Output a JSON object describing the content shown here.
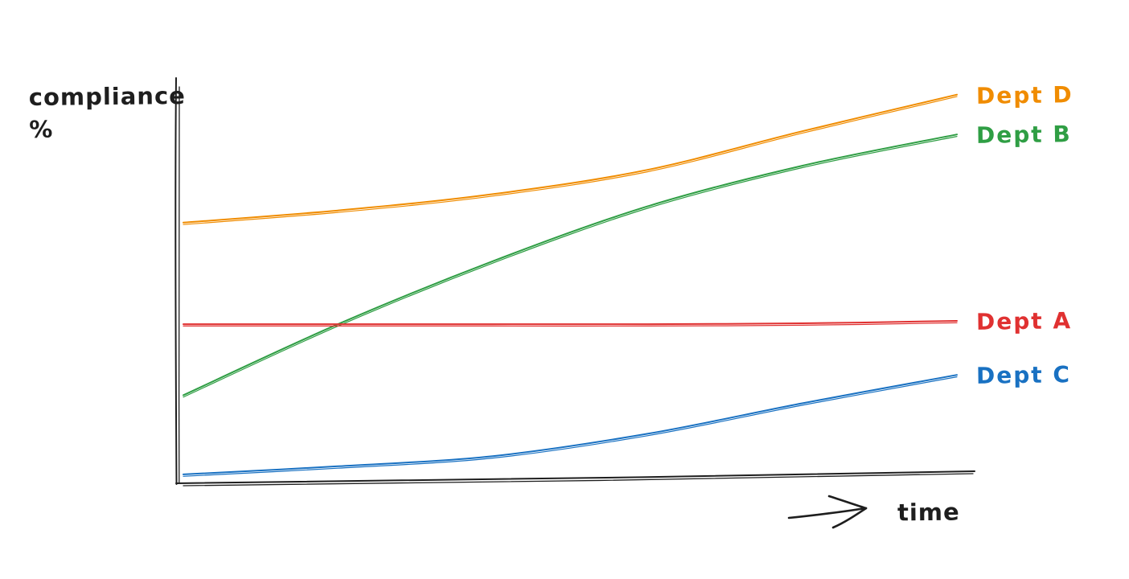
{
  "ui": {
    "ylabel_lines": [
      "compliance",
      "%"
    ],
    "xlabel": "time"
  },
  "style": {
    "axis_color": "#1e1e1e",
    "background": "#ffffff"
  },
  "chart_data": {
    "type": "line",
    "title": "",
    "xlabel": "time",
    "ylabel": "compliance %",
    "x": [
      0,
      0.2,
      0.4,
      0.6,
      0.8,
      1.0
    ],
    "x_tick_labels": [],
    "y_tick_labels": [],
    "ylim": [
      0,
      100
    ],
    "grid": false,
    "legend_position": "right of line endpoints",
    "style_note": "hand-drawn sketch, double-stroked lines, unlabeled axes",
    "series": [
      {
        "name": "Dept D",
        "color": "#f08c00",
        "values": [
          64,
          67,
          71,
          77,
          86.5,
          95.5
        ]
      },
      {
        "name": "Dept B",
        "color": "#2f9e44",
        "values": [
          21.5,
          39,
          54.5,
          68,
          78,
          85.7
        ]
      },
      {
        "name": "Dept A",
        "color": "#e03131",
        "values": [
          39,
          39,
          39,
          39,
          39.2,
          39.8
        ]
      },
      {
        "name": "Dept C",
        "color": "#1971c2",
        "values": [
          2,
          4,
          6.5,
          12,
          19.5,
          26.5
        ]
      }
    ]
  }
}
